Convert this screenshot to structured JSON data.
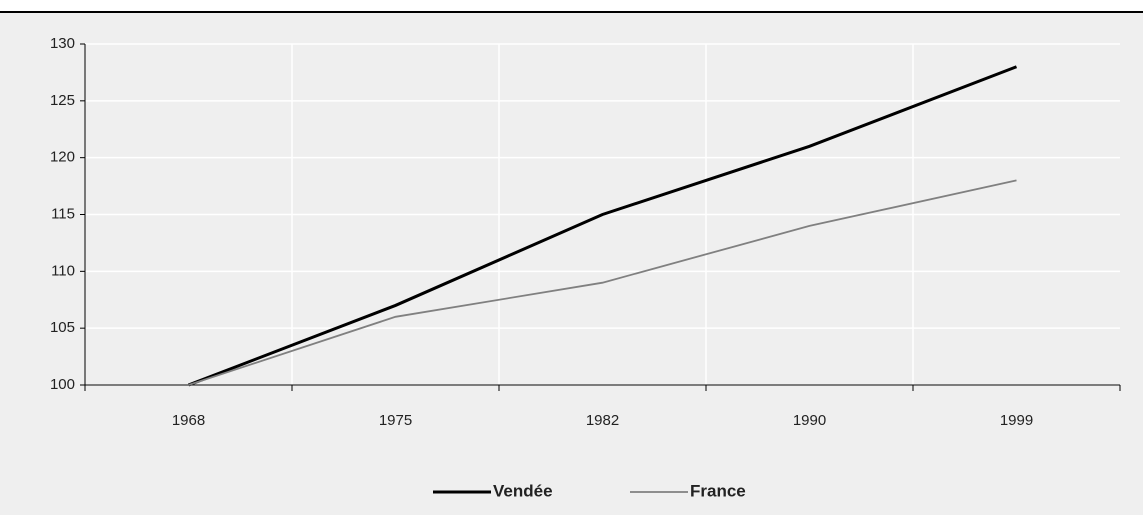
{
  "chart_data": {
    "type": "line",
    "categories": [
      "1968",
      "1975",
      "1982",
      "1990",
      "1999"
    ],
    "series": [
      {
        "name": "Vendée",
        "color": "#000000",
        "values": [
          100,
          107,
          115,
          121,
          128
        ]
      },
      {
        "name": "France",
        "color": "#808080",
        "values": [
          100,
          106,
          109,
          114,
          118
        ]
      }
    ],
    "ylim": [
      100,
      130
    ],
    "yticks": [
      100,
      105,
      110,
      115,
      120,
      125,
      130
    ],
    "grid": true,
    "legend": "bottom"
  }
}
